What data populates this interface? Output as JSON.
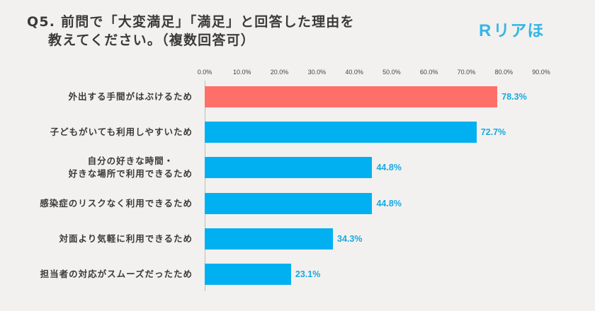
{
  "logo": {
    "mark": "R",
    "text": "リアほ",
    "color": "#35B6E6"
  },
  "chart_data": {
    "type": "bar",
    "orientation": "horizontal",
    "title": [
      "Q5. 前問で「大変満足」「満足」と回答した理由を",
      "教えてください。（複数回答可）"
    ],
    "categories": [
      "外出する手間がはぶけるため",
      "子どもがいても利用しやすいため",
      "自分の好きな時間・\n好きな場所で利用できるため",
      "感染症のリスクなく利用できるため",
      "対面より気軽に利用できるため",
      "担当者の対応がスムーズだったため"
    ],
    "values": [
      78.3,
      72.7,
      44.8,
      44.8,
      34.3,
      23.1
    ],
    "data_labels": [
      "78.3%",
      "72.7%",
      "44.8%",
      "44.8%",
      "34.3%",
      "23.1%"
    ],
    "xticks": [
      0,
      10,
      20,
      30,
      40,
      50,
      60,
      70,
      80,
      90
    ],
    "tick_labels": [
      "0.0%",
      "10.0%",
      "20.0%",
      "30.0%",
      "40.0%",
      "50.0%",
      "60.0%",
      "70.0%",
      "80.0%",
      "90.0%"
    ],
    "tick_position": "top",
    "xlim": [
      0,
      90
    ],
    "xlabel": "",
    "ylabel": "",
    "grid": false,
    "legend": "none",
    "bar_colors": [
      "#FF6F6A",
      "#00B0F0",
      "#00B0F0",
      "#00B0F0",
      "#00B0F0",
      "#00B0F0"
    ],
    "label_color": "#17A9E1",
    "background": "#F2F1EF"
  }
}
